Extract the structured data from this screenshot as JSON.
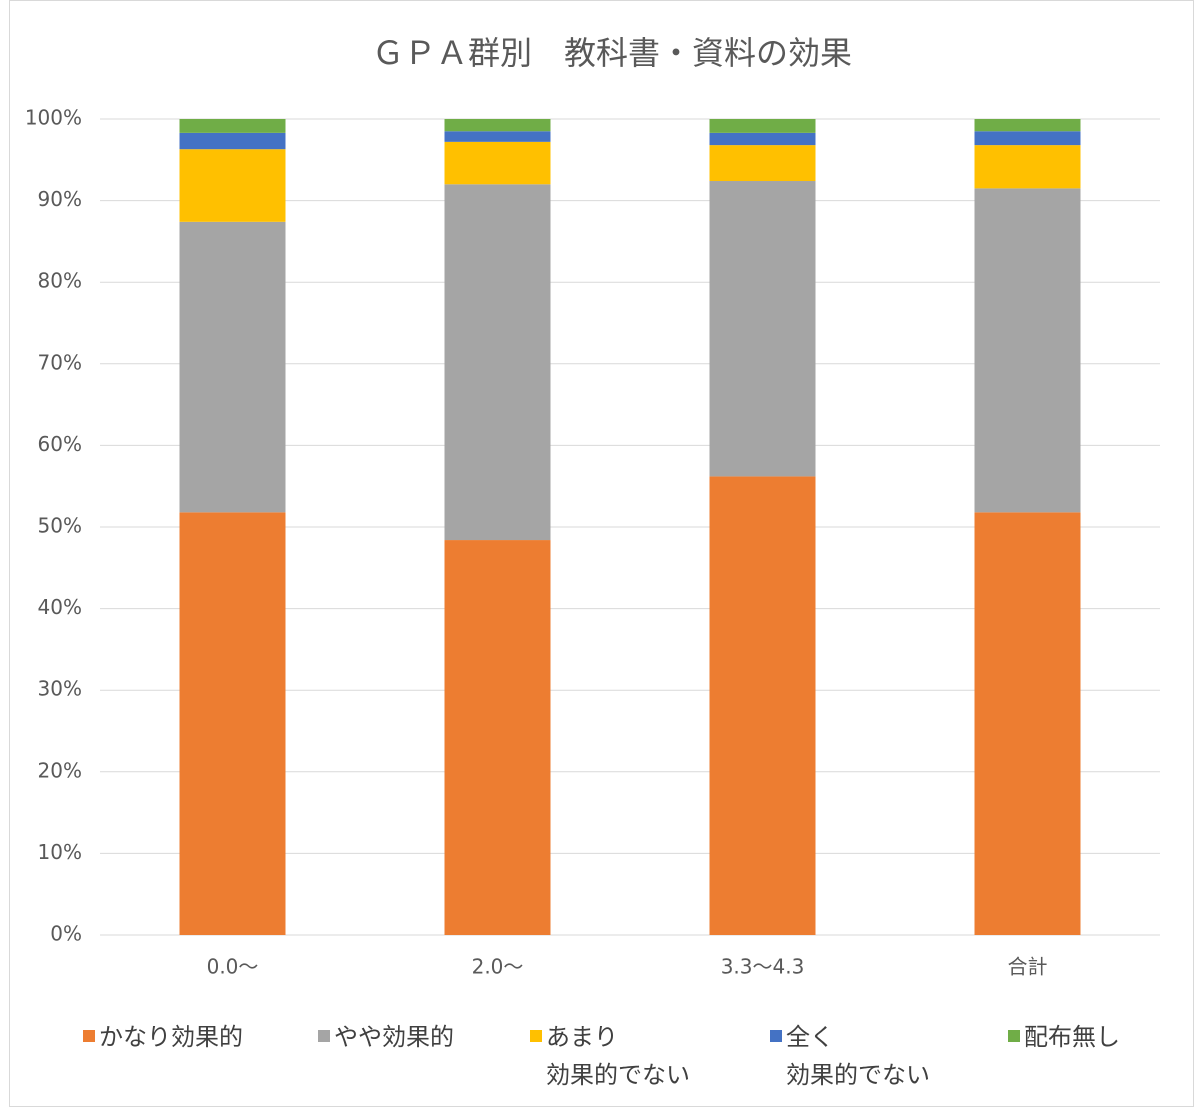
{
  "chart_data": {
    "type": "stacked_bar",
    "title": "ＧＰＡ群別　教科書・資料の効果",
    "categories": [
      "0.0～",
      "2.0～",
      "3.3～4.3",
      "合計"
    ],
    "series": [
      {
        "name": "かなり効果的",
        "color": "#ED7D31",
        "values": [
          51.8,
          48.4,
          56.2,
          51.8
        ]
      },
      {
        "name": "やや効果的",
        "color": "#A5A5A5",
        "values": [
          35.6,
          43.6,
          36.2,
          39.7
        ]
      },
      {
        "name": "あまり\n効果的でない",
        "color": "#FFC000",
        "values": [
          8.9,
          5.2,
          4.4,
          5.3
        ]
      },
      {
        "name": "全く\n効果的でない",
        "color": "#4472C4",
        "values": [
          2.0,
          1.3,
          1.5,
          1.7
        ]
      },
      {
        "name": "配布無し",
        "color": "#70AD47",
        "values": [
          1.7,
          1.5,
          1.7,
          1.5
        ]
      }
    ],
    "ylim": [
      0,
      100
    ],
    "yticks": [
      {
        "value": 0,
        "label": "0%"
      },
      {
        "value": 10,
        "label": "10%"
      },
      {
        "value": 20,
        "label": "20%"
      },
      {
        "value": 30,
        "label": "30%"
      },
      {
        "value": 40,
        "label": "40%"
      },
      {
        "value": 50,
        "label": "50%"
      },
      {
        "value": 60,
        "label": "60%"
      },
      {
        "value": 70,
        "label": "70%"
      },
      {
        "value": 80,
        "label": "80%"
      },
      {
        "value": 90,
        "label": "90%"
      },
      {
        "value": 100,
        "label": "100%"
      }
    ],
    "grid": true,
    "legend": "bottom"
  }
}
